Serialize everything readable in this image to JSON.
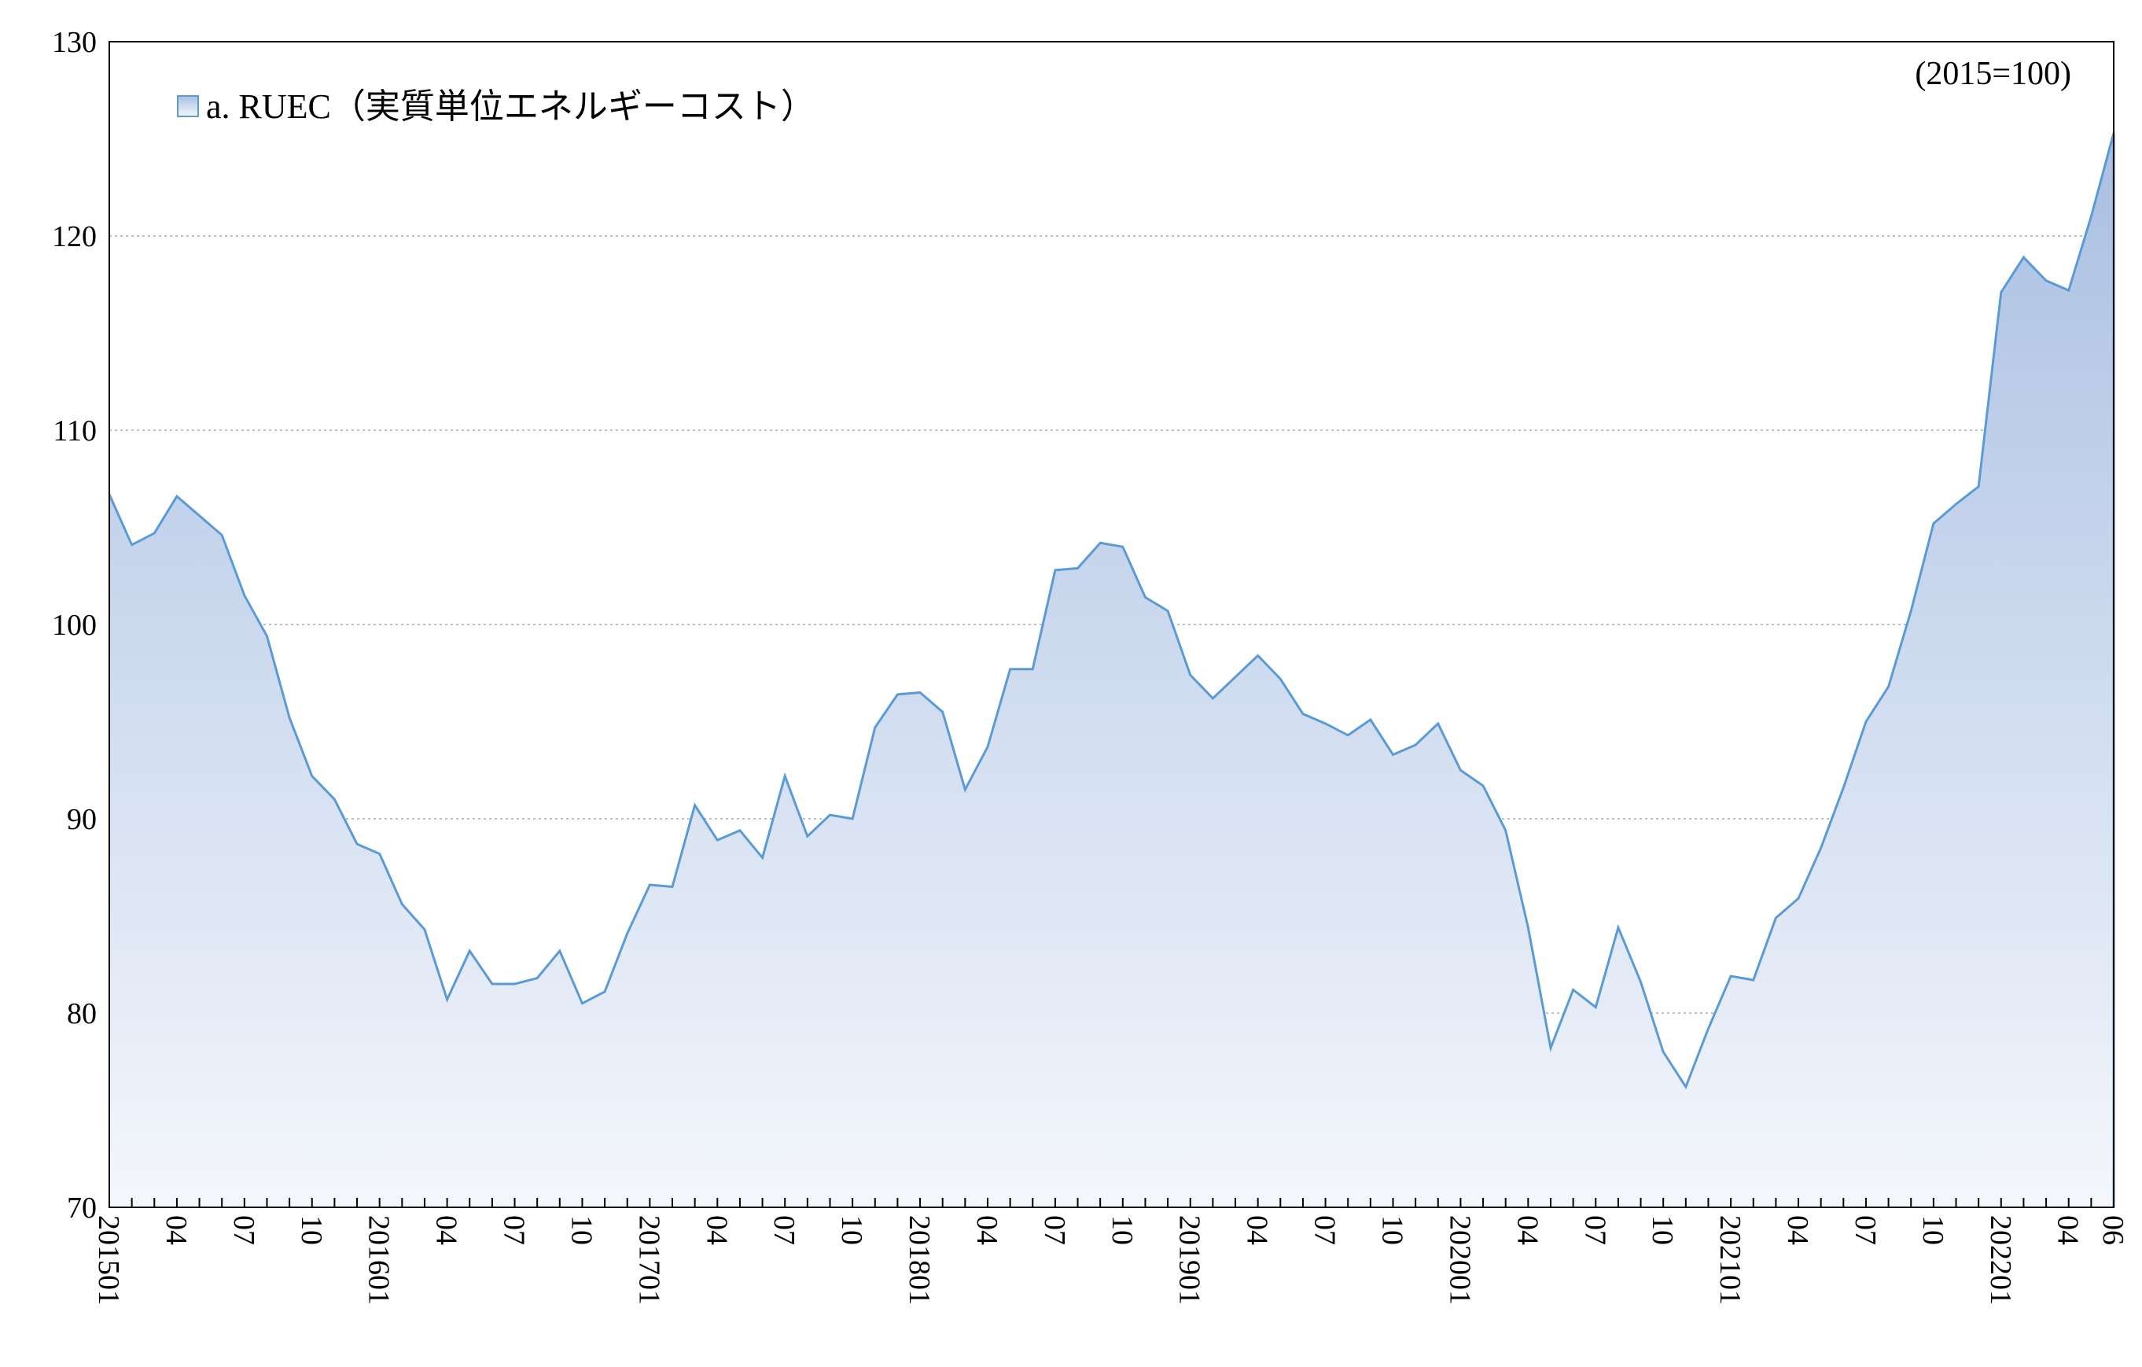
{
  "chart_data": {
    "type": "area",
    "legend": "a. RUEC（実質単位エネルギーコスト）",
    "note": "(2015=100)",
    "ylim": [
      70,
      130
    ],
    "yticks": [
      70,
      80,
      90,
      100,
      110,
      120,
      130
    ],
    "grid": true,
    "legend_position": "top-left",
    "colors": {
      "line": "#5b9bd5",
      "fill_top": "#a9bfe2",
      "fill_bottom": "#f4f7fc",
      "grid": "#bfbfbf",
      "axis": "#000000"
    },
    "x_tick_labels": [
      {
        "i": 0,
        "label": "201501"
      },
      {
        "i": 3,
        "label": "04"
      },
      {
        "i": 6,
        "label": "07"
      },
      {
        "i": 9,
        "label": "10"
      },
      {
        "i": 12,
        "label": "201601"
      },
      {
        "i": 15,
        "label": "04"
      },
      {
        "i": 18,
        "label": "07"
      },
      {
        "i": 21,
        "label": "10"
      },
      {
        "i": 24,
        "label": "201701"
      },
      {
        "i": 27,
        "label": "04"
      },
      {
        "i": 30,
        "label": "07"
      },
      {
        "i": 33,
        "label": "10"
      },
      {
        "i": 36,
        "label": "201801"
      },
      {
        "i": 39,
        "label": "04"
      },
      {
        "i": 42,
        "label": "07"
      },
      {
        "i": 45,
        "label": "10"
      },
      {
        "i": 48,
        "label": "201901"
      },
      {
        "i": 51,
        "label": "04"
      },
      {
        "i": 54,
        "label": "07"
      },
      {
        "i": 57,
        "label": "10"
      },
      {
        "i": 60,
        "label": "202001"
      },
      {
        "i": 63,
        "label": "04"
      },
      {
        "i": 66,
        "label": "07"
      },
      {
        "i": 69,
        "label": "10"
      },
      {
        "i": 72,
        "label": "202101"
      },
      {
        "i": 75,
        "label": "04"
      },
      {
        "i": 78,
        "label": "07"
      },
      {
        "i": 81,
        "label": "10"
      },
      {
        "i": 84,
        "label": "202201"
      },
      {
        "i": 87,
        "label": "04"
      },
      {
        "i": 89,
        "label": "06"
      }
    ],
    "x": [
      "2015-01",
      "2015-02",
      "2015-03",
      "2015-04",
      "2015-05",
      "2015-06",
      "2015-07",
      "2015-08",
      "2015-09",
      "2015-10",
      "2015-11",
      "2015-12",
      "2016-01",
      "2016-02",
      "2016-03",
      "2016-04",
      "2016-05",
      "2016-06",
      "2016-07",
      "2016-08",
      "2016-09",
      "2016-10",
      "2016-11",
      "2016-12",
      "2017-01",
      "2017-02",
      "2017-03",
      "2017-04",
      "2017-05",
      "2017-06",
      "2017-07",
      "2017-08",
      "2017-09",
      "2017-10",
      "2017-11",
      "2017-12",
      "2018-01",
      "2018-02",
      "2018-03",
      "2018-04",
      "2018-05",
      "2018-06",
      "2018-07",
      "2018-08",
      "2018-09",
      "2018-10",
      "2018-11",
      "2018-12",
      "2019-01",
      "2019-02",
      "2019-03",
      "2019-04",
      "2019-05",
      "2019-06",
      "2019-07",
      "2019-08",
      "2019-09",
      "2019-10",
      "2019-11",
      "2019-12",
      "2020-01",
      "2020-02",
      "2020-03",
      "2020-04",
      "2020-05",
      "2020-06",
      "2020-07",
      "2020-08",
      "2020-09",
      "2020-10",
      "2020-11",
      "2020-12",
      "2021-01",
      "2021-02",
      "2021-03",
      "2021-04",
      "2021-05",
      "2021-06",
      "2021-07",
      "2021-08",
      "2021-09",
      "2021-10",
      "2021-11",
      "2021-12",
      "2022-01",
      "2022-02",
      "2022-03",
      "2022-04",
      "2022-05",
      "2022-06"
    ],
    "series": [
      {
        "name": "a. RUEC（実質単位エネルギーコスト）",
        "values": [
          106.7,
          104.1,
          104.7,
          106.6,
          105.6,
          104.6,
          101.5,
          99.4,
          95.2,
          92.2,
          91.0,
          88.7,
          88.2,
          85.6,
          84.3,
          80.7,
          83.2,
          81.5,
          81.5,
          81.8,
          83.2,
          80.5,
          81.1,
          84.1,
          86.6,
          86.5,
          90.7,
          88.9,
          89.4,
          88.0,
          92.2,
          89.1,
          90.2,
          90.0,
          94.7,
          96.4,
          96.5,
          95.5,
          91.5,
          93.7,
          97.7,
          97.7,
          102.8,
          102.9,
          104.2,
          104.0,
          101.4,
          100.7,
          97.4,
          96.2,
          97.3,
          98.4,
          97.2,
          95.4,
          94.9,
          94.3,
          95.1,
          93.3,
          93.8,
          94.9,
          92.5,
          91.7,
          89.4,
          84.4,
          78.2,
          81.2,
          80.3,
          84.4,
          81.6,
          78.0,
          76.2,
          79.2,
          81.9,
          81.7,
          84.9,
          85.9,
          88.5,
          91.6,
          95.0,
          96.8,
          100.7,
          105.2,
          106.2,
          107.1,
          117.1,
          118.9,
          117.7,
          117.2,
          121.0,
          125.3
        ]
      }
    ]
  }
}
